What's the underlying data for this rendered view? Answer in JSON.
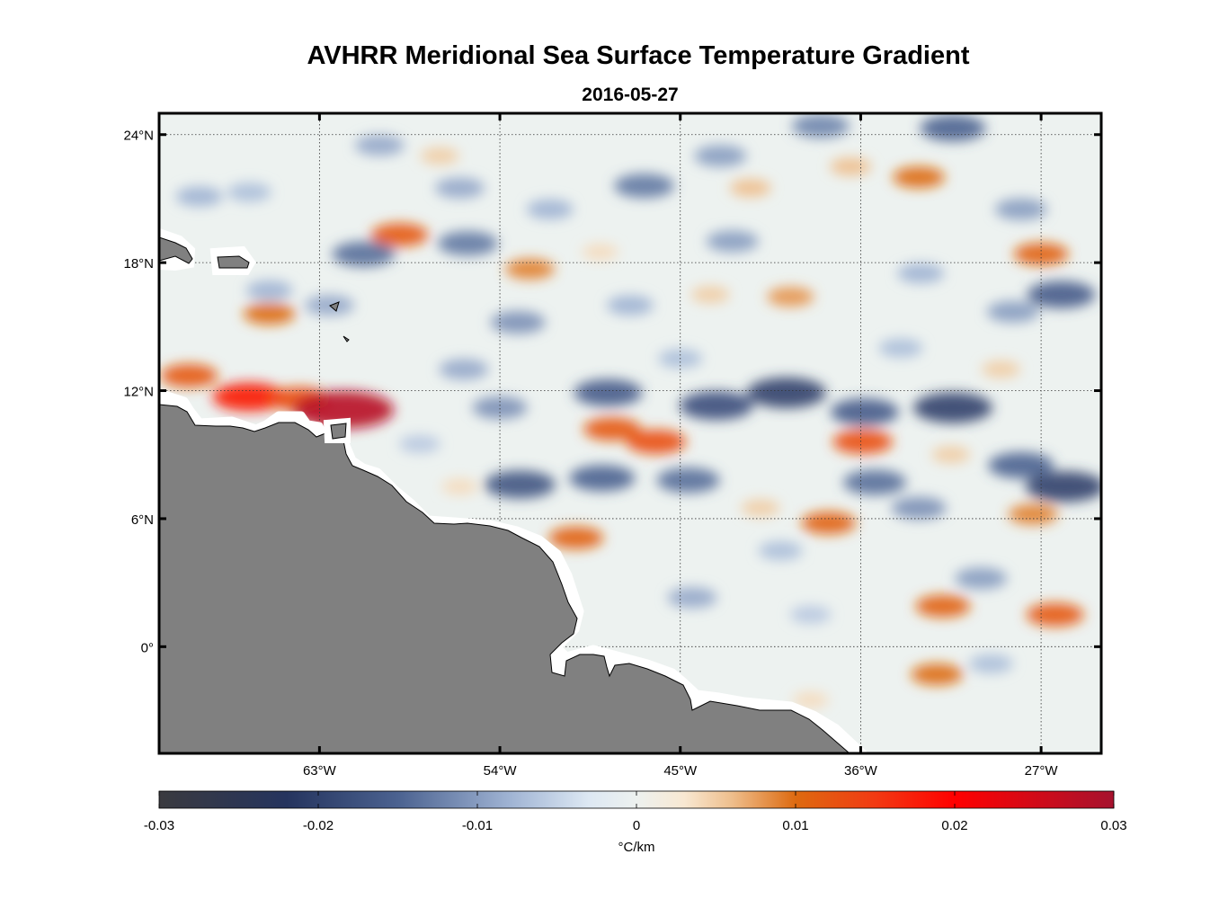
{
  "figure": {
    "title": "AVHRR Meridional Sea Surface Temperature Gradient",
    "subtitle": "2016-05-27"
  },
  "map": {
    "projection": "equirectangular",
    "lon_range": [
      -71,
      -24
    ],
    "lat_range": [
      -5,
      25
    ],
    "lon_ticks": [
      {
        "value": -63,
        "label": "63°W"
      },
      {
        "value": -54,
        "label": "54°W"
      },
      {
        "value": -45,
        "label": "45°W"
      },
      {
        "value": -36,
        "label": "36°W"
      },
      {
        "value": -27,
        "label": "27°W"
      }
    ],
    "lat_ticks": [
      {
        "value": 24,
        "label": "24°N"
      },
      {
        "value": 18,
        "label": "18°N"
      },
      {
        "value": 12,
        "label": "12°N"
      },
      {
        "value": 6,
        "label": "6°N"
      },
      {
        "value": 0,
        "label": "0°"
      }
    ],
    "grid": true,
    "land_color": "#808080",
    "field_variable": "Meridional SST gradient",
    "features": [
      {
        "lon": -66.5,
        "lat": 11.7,
        "value": 0.018
      },
      {
        "lon": -64.0,
        "lat": 11.6,
        "value": 0.013
      },
      {
        "lon": -61.8,
        "lat": 11.1,
        "value": 0.028
      },
      {
        "lon": -69.5,
        "lat": 12.7,
        "value": 0.012
      },
      {
        "lon": -59.0,
        "lat": 19.3,
        "value": 0.012
      },
      {
        "lon": -65.5,
        "lat": 15.6,
        "value": 0.01
      },
      {
        "lon": -52.5,
        "lat": 17.7,
        "value": 0.009
      },
      {
        "lon": -46.2,
        "lat": 9.6,
        "value": 0.013
      },
      {
        "lon": -48.4,
        "lat": 10.2,
        "value": 0.012
      },
      {
        "lon": -35.9,
        "lat": 9.6,
        "value": 0.013
      },
      {
        "lon": -37.6,
        "lat": 5.8,
        "value": 0.011
      },
      {
        "lon": -50.2,
        "lat": 5.1,
        "value": 0.011
      },
      {
        "lon": -33.1,
        "lat": 22.0,
        "value": 0.01
      },
      {
        "lon": -27.0,
        "lat": 18.4,
        "value": 0.011
      },
      {
        "lon": -31.9,
        "lat": 1.9,
        "value": 0.011
      },
      {
        "lon": -26.3,
        "lat": 1.5,
        "value": 0.012
      },
      {
        "lon": -39.5,
        "lat": 16.4,
        "value": 0.008
      },
      {
        "lon": -32.2,
        "lat": -1.3,
        "value": 0.01
      },
      {
        "lon": -27.4,
        "lat": 6.2,
        "value": 0.009
      },
      {
        "lon": -39.7,
        "lat": 11.9,
        "value": -0.02
      },
      {
        "lon": -43.2,
        "lat": 11.3,
        "value": -0.018
      },
      {
        "lon": -31.4,
        "lat": 11.2,
        "value": -0.02
      },
      {
        "lon": -35.8,
        "lat": 11.0,
        "value": -0.016
      },
      {
        "lon": -48.6,
        "lat": 11.9,
        "value": -0.016
      },
      {
        "lon": -53.0,
        "lat": 7.6,
        "value": -0.017
      },
      {
        "lon": -48.9,
        "lat": 7.9,
        "value": -0.015
      },
      {
        "lon": -44.6,
        "lat": 7.8,
        "value": -0.014
      },
      {
        "lon": -25.8,
        "lat": 7.5,
        "value": -0.02
      },
      {
        "lon": -28.0,
        "lat": 8.5,
        "value": -0.015
      },
      {
        "lon": -26.0,
        "lat": 16.5,
        "value": -0.016
      },
      {
        "lon": -60.8,
        "lat": 18.4,
        "value": -0.014
      },
      {
        "lon": -55.6,
        "lat": 18.9,
        "value": -0.013
      },
      {
        "lon": -46.8,
        "lat": 21.6,
        "value": -0.013
      },
      {
        "lon": -31.4,
        "lat": 24.3,
        "value": -0.015
      },
      {
        "lon": -38.0,
        "lat": 24.4,
        "value": -0.012
      },
      {
        "lon": -35.3,
        "lat": 7.7,
        "value": -0.014
      },
      {
        "lon": -33.1,
        "lat": 6.5,
        "value": -0.011
      },
      {
        "lon": -53.1,
        "lat": 15.2,
        "value": -0.011
      },
      {
        "lon": -54.0,
        "lat": 11.2,
        "value": -0.011
      },
      {
        "lon": -43.0,
        "lat": 23.0,
        "value": -0.01
      },
      {
        "lon": -30.0,
        "lat": 3.2,
        "value": -0.01
      },
      {
        "lon": -60.0,
        "lat": 23.5,
        "value": -0.009
      },
      {
        "lon": -56.0,
        "lat": 21.5,
        "value": -0.009
      },
      {
        "lon": -62.5,
        "lat": 16.0,
        "value": -0.009
      },
      {
        "lon": -65.5,
        "lat": 16.7,
        "value": -0.008
      },
      {
        "lon": -69.0,
        "lat": 21.1,
        "value": -0.008
      },
      {
        "lon": -66.5,
        "lat": 21.3,
        "value": -0.007
      },
      {
        "lon": -55.8,
        "lat": 13.0,
        "value": -0.009
      },
      {
        "lon": -44.4,
        "lat": 2.3,
        "value": -0.009
      },
      {
        "lon": -42.4,
        "lat": 19.0,
        "value": -0.01
      },
      {
        "lon": -28.4,
        "lat": 15.7,
        "value": -0.01
      },
      {
        "lon": -28.0,
        "lat": 20.5,
        "value": -0.01
      },
      {
        "lon": -33.0,
        "lat": 17.5,
        "value": -0.008
      },
      {
        "lon": -47.5,
        "lat": 16.0,
        "value": -0.008
      },
      {
        "lon": -51.5,
        "lat": 20.5,
        "value": -0.008
      },
      {
        "lon": -40.0,
        "lat": 4.5,
        "value": -0.007
      },
      {
        "lon": -45.0,
        "lat": 13.5,
        "value": -0.007
      },
      {
        "lon": -38.5,
        "lat": 1.5,
        "value": -0.006
      },
      {
        "lon": -29.5,
        "lat": -0.8,
        "value": -0.007
      },
      {
        "lon": -58.0,
        "lat": 9.5,
        "value": -0.006
      },
      {
        "lon": -34.0,
        "lat": 14.0,
        "value": -0.007
      },
      {
        "lon": -41.5,
        "lat": 21.5,
        "value": 0.006
      },
      {
        "lon": -36.5,
        "lat": 22.5,
        "value": 0.006
      },
      {
        "lon": -57.0,
        "lat": 23.0,
        "value": 0.005
      },
      {
        "lon": -43.5,
        "lat": 16.5,
        "value": 0.005
      },
      {
        "lon": -49.0,
        "lat": 18.5,
        "value": 0.004
      },
      {
        "lon": -31.5,
        "lat": 9.0,
        "value": 0.005
      },
      {
        "lon": -41.0,
        "lat": 6.5,
        "value": 0.005
      },
      {
        "lon": -38.5,
        "lat": -2.5,
        "value": 0.004
      },
      {
        "lon": -29.0,
        "lat": 13.0,
        "value": 0.005
      },
      {
        "lon": -56.0,
        "lat": 7.5,
        "value": 0.004
      }
    ]
  },
  "colorbar": {
    "range": [
      -0.03,
      0.03
    ],
    "ticks": [
      {
        "value": -0.03,
        "label": "-0.03"
      },
      {
        "value": -0.02,
        "label": "-0.02"
      },
      {
        "value": -0.01,
        "label": "-0.01"
      },
      {
        "value": 0,
        "label": "0"
      },
      {
        "value": 0.01,
        "label": "0.01"
      },
      {
        "value": 0.02,
        "label": "0.02"
      },
      {
        "value": 0.03,
        "label": "0.03"
      }
    ],
    "unit_label": "°C/km",
    "colors": [
      {
        "v": -0.03,
        "c": "#3a3a3f"
      },
      {
        "v": -0.022,
        "c": "#25345e"
      },
      {
        "v": -0.015,
        "c": "#4b6290"
      },
      {
        "v": -0.008,
        "c": "#9fb3d3"
      },
      {
        "v": -0.003,
        "c": "#dde8f3"
      },
      {
        "v": 0.0,
        "c": "#edf1ef"
      },
      {
        "v": 0.003,
        "c": "#f8e8d2"
      },
      {
        "v": 0.006,
        "c": "#eebe8c"
      },
      {
        "v": 0.01,
        "c": "#dd6a10"
      },
      {
        "v": 0.015,
        "c": "#f23a12"
      },
      {
        "v": 0.02,
        "c": "#ff0000"
      },
      {
        "v": 0.025,
        "c": "#d20a18"
      },
      {
        "v": 0.03,
        "c": "#a6122e"
      }
    ]
  }
}
